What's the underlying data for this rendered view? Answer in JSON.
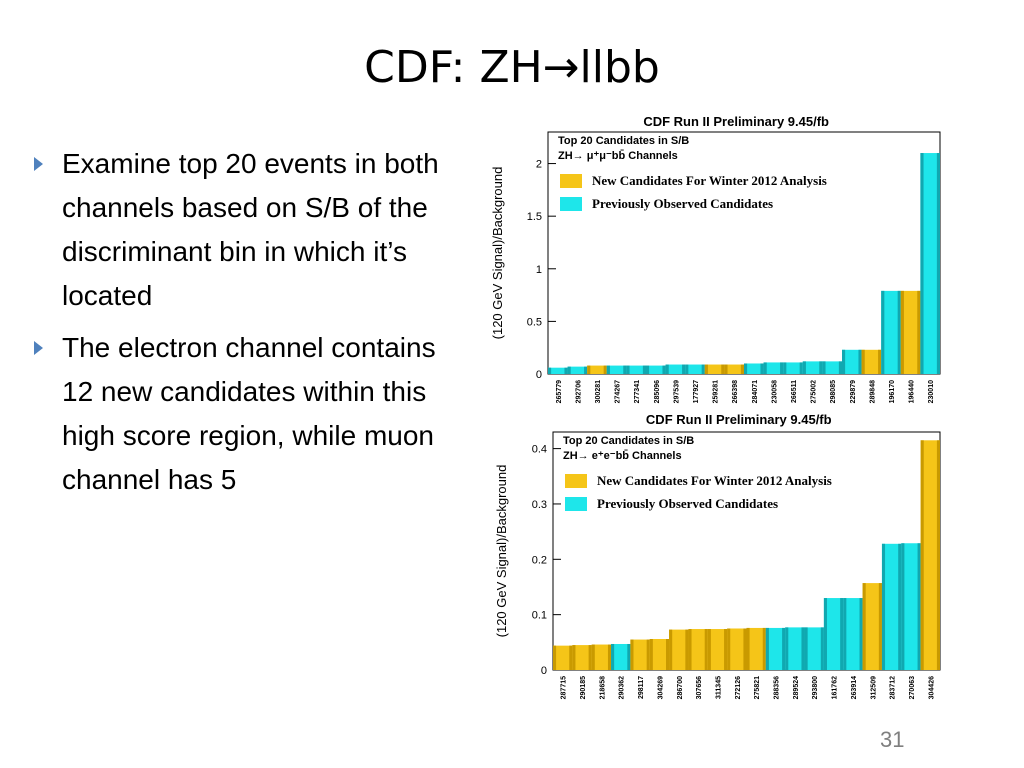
{
  "slide": {
    "title": "CDF: ZH→llbb",
    "bullets": [
      "Examine top 20 events in both channels based on S/B of the discriminant bin in which it’s located",
      "The electron channel contains 12 new candidates within this high score region, while muon channel has 5"
    ],
    "page_number": "31"
  },
  "colors": {
    "new": "#f5c518",
    "new_dark": "#c99a00",
    "prev": "#1ee6ea",
    "prev_dark": "#10a8b0",
    "bullet": "#4f81bd"
  },
  "chart_data": [
    {
      "type": "bar",
      "title": "CDF Run II Preliminary 9.45/fb",
      "ylabel": "(120 GeV Signal)/Background",
      "annotation": [
        "Top 20 Candidates in S/B",
        "ZH→ μ⁺μ⁻bb̄ Channels"
      ],
      "legend": [
        "New Candidates For Winter 2012 Analysis",
        "Previously Observed Candidates"
      ],
      "legend_position": "top-left",
      "ylim": [
        0,
        2.3
      ],
      "yticks": [
        0,
        0.5,
        1,
        1.5,
        2
      ],
      "ytick_labels": [
        "0",
        "0.5",
        "1",
        "1.5",
        "2"
      ],
      "categories": [
        "265779",
        "292706",
        "300281",
        "274267",
        "277341",
        "285096",
        "297539",
        "177927",
        "259281",
        "266398",
        "284071",
        "230058",
        "266511",
        "275002",
        "298085",
        "229879",
        "289848",
        "196170",
        "196440",
        "230010"
      ],
      "values": [
        0.06,
        0.07,
        0.08,
        0.08,
        0.08,
        0.08,
        0.09,
        0.09,
        0.09,
        0.09,
        0.1,
        0.11,
        0.11,
        0.12,
        0.12,
        0.23,
        0.23,
        0.79,
        0.79,
        2.1
      ],
      "new_candidate": [
        false,
        false,
        true,
        false,
        false,
        false,
        false,
        false,
        true,
        true,
        false,
        false,
        false,
        false,
        false,
        false,
        true,
        false,
        true,
        false
      ],
      "grid": false
    },
    {
      "type": "bar",
      "title": "CDF Run II Preliminary 9.45/fb",
      "ylabel": "(120 GeV Signal)/Background",
      "annotation": [
        "Top 20 Candidates in S/B",
        "ZH→ e⁺e⁻bb̄ Channels"
      ],
      "legend": [
        "New Candidates For Winter 2012 Analysis",
        "Previously Observed Candidates"
      ],
      "legend_position": "top-left",
      "ylim": [
        0,
        0.43
      ],
      "yticks": [
        0,
        0.1,
        0.2,
        0.3,
        0.4
      ],
      "ytick_labels": [
        "0",
        "0.1",
        "0.2",
        "0.3",
        "0.4"
      ],
      "categories": [
        "287715",
        "290185",
        "218658",
        "290362",
        "298117",
        "304269",
        "286700",
        "307656",
        "311345",
        "272126",
        "275821",
        "288356",
        "289524",
        "293800",
        "161762",
        "263914",
        "312509",
        "283712",
        "270063",
        "304426"
      ],
      "values": [
        0.044,
        0.045,
        0.046,
        0.047,
        0.055,
        0.056,
        0.073,
        0.074,
        0.074,
        0.075,
        0.076,
        0.076,
        0.077,
        0.077,
        0.13,
        0.13,
        0.157,
        0.228,
        0.229,
        0.415
      ],
      "new_candidate": [
        true,
        true,
        true,
        false,
        true,
        true,
        true,
        true,
        true,
        true,
        true,
        false,
        false,
        false,
        false,
        false,
        true,
        false,
        false,
        true
      ],
      "grid": false
    }
  ]
}
